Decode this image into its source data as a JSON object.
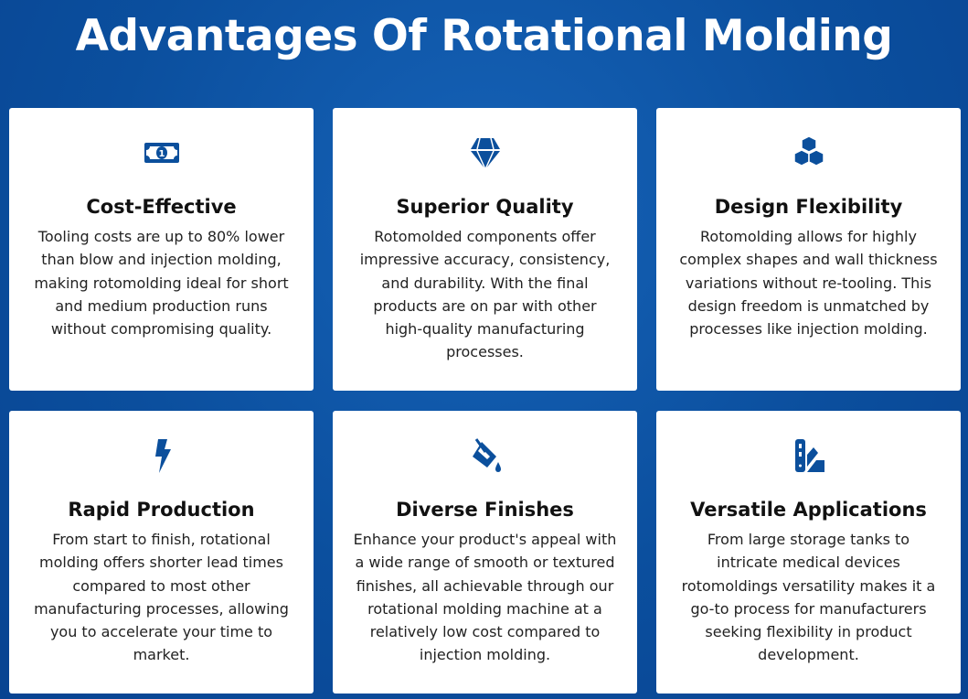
{
  "title": "Advantages Of Rotational Molding",
  "accent": "#0b4f9c",
  "cards": [
    {
      "icon": "money-bill-icon",
      "heading": "Cost-Effective",
      "text": "Tooling costs are up to 80% lower than blow and injection molding, making rotomolding ideal for short and medium production runs without compromising quality."
    },
    {
      "icon": "gem-icon",
      "heading": "Superior Quality",
      "text": "Rotomolded components offer impressive accuracy, consistency, and durability. With the final products are on par with other high-quality manufacturing processes."
    },
    {
      "icon": "cubes-icon",
      "heading": "Design Flexibility",
      "text": "Rotomolding allows for highly complex shapes and wall thickness variations without re-tooling. This design freedom is unmatched by processes like injection molding."
    },
    {
      "icon": "bolt-icon",
      "heading": "Rapid Production",
      "text": "From start to finish, rotational molding offers shorter lead times compared to most other manufacturing processes, allowing you to accelerate your time to market."
    },
    {
      "icon": "paint-bucket-icon",
      "heading": "Diverse Finishes",
      "text": "Enhance your product's appeal with a wide range of smooth or textured finishes, all achievable through our rotational molding machine at a relatively low cost compared to injection molding."
    },
    {
      "icon": "swatchbook-icon",
      "heading": "Versatile Applications",
      "text": "From large storage tanks to intricate medical devices rotomoldings versatility makes it a go-to process for manufacturers seeking flexibility in product development."
    }
  ]
}
